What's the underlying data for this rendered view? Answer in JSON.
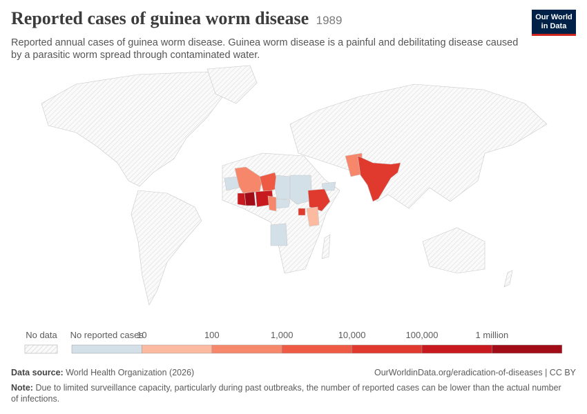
{
  "header": {
    "title": "Reported cases of guinea worm disease",
    "year": "1989",
    "subtitle": "Reported annual cases of guinea worm disease. Guinea worm disease is a painful and debilitating disease caused by a parasitic worm spread through contaminated water.",
    "logo": [
      "Our World",
      "in Data"
    ]
  },
  "legend": {
    "no_data": "No data",
    "labels": [
      "No reported cases",
      "10",
      "100",
      "1,000",
      "10,000",
      "100,000",
      "1 million"
    ],
    "colors": [
      "#d3e0e8",
      "#fcbba1",
      "#f7876a",
      "#ef5a45",
      "#e03a2e",
      "#c81a1e",
      "#a10c17"
    ]
  },
  "footer": {
    "source_label": "Data source:",
    "source": "World Health Organization (2026)",
    "url": "OurWorldinData.org/eradication-of-diseases | CC BY",
    "note_label": "Note:",
    "note": "Due to limited surveillance capacity, particularly during past outbreaks, the number of reported cases can be lower than the actual number of infections."
  }
}
